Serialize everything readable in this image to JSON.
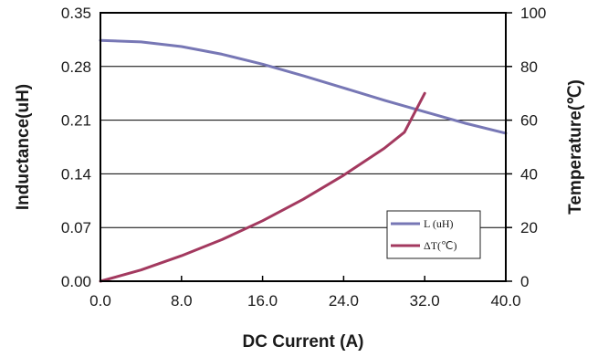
{
  "chart_data": {
    "type": "line",
    "xlabel": "DC Current (A)",
    "ylabel_left": "Inductance(uH)",
    "ylabel_right": "Temperature(℃)",
    "xlim": [
      0,
      40
    ],
    "ylim_left": [
      0,
      0.35
    ],
    "ylim_right": [
      0,
      100
    ],
    "x_ticks": [
      "0.0",
      "8.0",
      "16.0",
      "24.0",
      "32.0",
      "40.0"
    ],
    "y_left_ticks": [
      "0.00",
      "0.07",
      "0.14",
      "0.21",
      "0.28",
      "0.35"
    ],
    "y_right_ticks": [
      "0",
      "20",
      "40",
      "60",
      "80",
      "100"
    ],
    "grid": "horizontal",
    "legend_position": "bottom-right",
    "series": [
      {
        "name": "L (uH)",
        "axis": "left",
        "color": "#7777b5",
        "points": [
          [
            0,
            0.314
          ],
          [
            4,
            0.312
          ],
          [
            8,
            0.306
          ],
          [
            12,
            0.296
          ],
          [
            16,
            0.283
          ],
          [
            20,
            0.268
          ],
          [
            24,
            0.252
          ],
          [
            28,
            0.236
          ],
          [
            32,
            0.221
          ],
          [
            36,
            0.206
          ],
          [
            40,
            0.193
          ]
        ]
      },
      {
        "name": "ΔT(℃)",
        "axis": "right",
        "color": "#a3395f",
        "points": [
          [
            0,
            0
          ],
          [
            4,
            4.2
          ],
          [
            8,
            9.5
          ],
          [
            12,
            15.5
          ],
          [
            16,
            22.5
          ],
          [
            20,
            30.5
          ],
          [
            24,
            39.5
          ],
          [
            28,
            49.5
          ],
          [
            30,
            55.5
          ],
          [
            32,
            70
          ]
        ]
      }
    ]
  }
}
